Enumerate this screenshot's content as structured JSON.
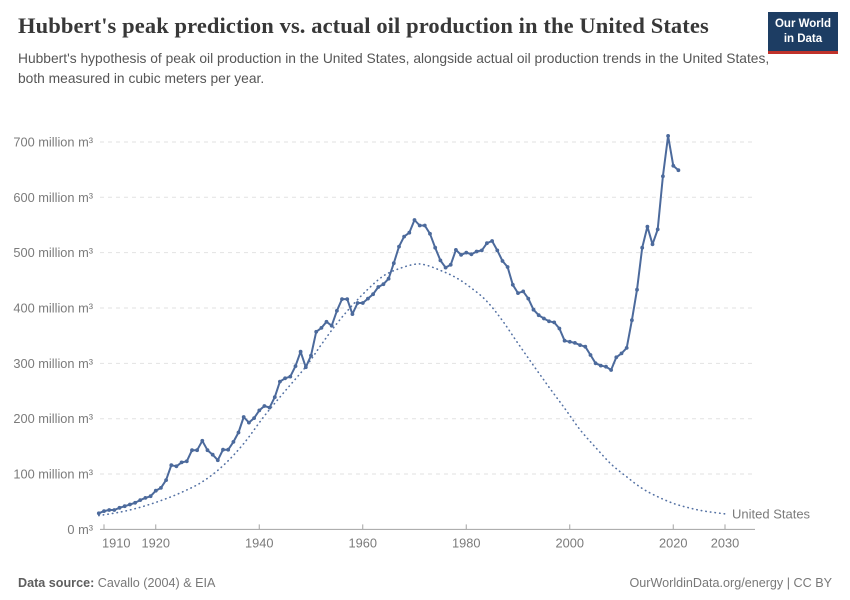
{
  "header": {
    "title": "Hubbert's peak prediction vs. actual oil production in the United States",
    "subtitle": "Hubbert's hypothesis of peak oil production in the United States, alongside actual oil production trends in the United States, both measured in cubic meters per year."
  },
  "logo": {
    "line1": "Our World",
    "line2": "in Data",
    "bg_color": "#1d3d63",
    "accent_color": "#c0322b"
  },
  "footer": {
    "source_label": "Data source:",
    "source_text": " Cavallo (2004) & EIA",
    "right_text": "OurWorldinData.org/energy | CC BY"
  },
  "chart_data": {
    "type": "line",
    "title": "Hubbert's peak prediction vs. actual oil production in the United States",
    "xlabel": "",
    "ylabel": "cubic meters per year",
    "unit": "million m³",
    "xlim": [
      1909,
      2036
    ],
    "ylim": [
      0,
      730
    ],
    "grid": "horizontal-dashed",
    "legend_position": "end-of-line-label",
    "entity_label": "United States",
    "colors": {
      "actual_line": "#4c6a9c",
      "hubbert_line": "#5572a4",
      "entity_label": "#4d6fa5",
      "gridline": "#e2e2e2",
      "axis": "#a3a3a3",
      "tick_text": "#7b7b7b"
    },
    "x_ticks": [
      {
        "year": 1910,
        "label": "1910"
      },
      {
        "year": 1920,
        "label": "1920"
      },
      {
        "year": 1940,
        "label": "1940"
      },
      {
        "year": 1960,
        "label": "1960"
      },
      {
        "year": 1980,
        "label": "1980"
      },
      {
        "year": 2000,
        "label": "2000"
      },
      {
        "year": 2020,
        "label": "2020"
      },
      {
        "year": 2030,
        "label": "2030"
      }
    ],
    "y_ticks": [
      {
        "value": 0,
        "label": "0 m³"
      },
      {
        "value": 100,
        "label": "100 million m³"
      },
      {
        "value": 200,
        "label": "200 million m³"
      },
      {
        "value": 300,
        "label": "300 million m³"
      },
      {
        "value": 400,
        "label": "400 million m³"
      },
      {
        "value": 500,
        "label": "500 million m³"
      },
      {
        "value": 600,
        "label": "600 million m³"
      },
      {
        "value": 700,
        "label": "700 million m³"
      }
    ],
    "series": [
      {
        "name": "United States actual oil production (million m³ per year)",
        "style": "solid-with-markers",
        "start_year": 1909,
        "values": [
          29,
          33,
          35,
          35,
          39,
          42,
          45,
          48,
          53,
          57,
          60,
          70,
          75,
          89,
          116,
          114,
          121,
          123,
          143,
          143,
          160,
          143,
          135,
          125,
          144,
          144,
          158,
          175,
          203,
          193,
          201,
          215,
          223,
          220,
          239,
          267,
          273,
          276,
          295,
          321,
          293,
          314,
          357,
          364,
          375,
          368,
          395,
          416,
          416,
          389,
          409,
          409,
          417,
          425,
          438,
          443,
          453,
          481,
          511,
          529,
          536,
          559,
          549,
          549,
          534,
          509,
          486,
          473,
          478,
          505,
          496,
          500,
          497,
          502,
          504,
          517,
          521,
          504,
          485,
          474,
          442,
          427,
          430,
          417,
          397,
          387,
          381,
          376,
          374,
          363,
          341,
          339,
          337,
          333,
          330,
          315,
          300,
          296,
          294,
          288,
          311,
          318,
          328,
          378,
          433,
          509,
          547,
          515,
          542,
          638,
          711,
          657,
          649
        ]
      },
      {
        "name": "Hubbert's peak prediction (million m³ per year)",
        "style": "dotted",
        "points": [
          [
            1909,
            25
          ],
          [
            1913,
            31
          ],
          [
            1917,
            40
          ],
          [
            1921,
            52
          ],
          [
            1925,
            67
          ],
          [
            1929,
            86
          ],
          [
            1933,
            115
          ],
          [
            1937,
            155
          ],
          [
            1941,
            205
          ],
          [
            1945,
            250
          ],
          [
            1949,
            294
          ],
          [
            1952,
            334
          ],
          [
            1955,
            372
          ],
          [
            1958,
            405
          ],
          [
            1961,
            434
          ],
          [
            1964,
            458
          ],
          [
            1967,
            471
          ],
          [
            1970,
            479
          ],
          [
            1972,
            478
          ],
          [
            1975,
            468
          ],
          [
            1978,
            455
          ],
          [
            1981,
            436
          ],
          [
            1984,
            412
          ],
          [
            1987,
            377
          ],
          [
            1990,
            336
          ],
          [
            1993,
            296
          ],
          [
            1996,
            257
          ],
          [
            1999,
            219
          ],
          [
            2002,
            180
          ],
          [
            2005,
            148
          ],
          [
            2008,
            118
          ],
          [
            2011,
            95
          ],
          [
            2014,
            74
          ],
          [
            2017,
            59
          ],
          [
            2020,
            47
          ],
          [
            2023,
            39
          ],
          [
            2026,
            33
          ],
          [
            2030,
            28
          ]
        ]
      }
    ]
  }
}
